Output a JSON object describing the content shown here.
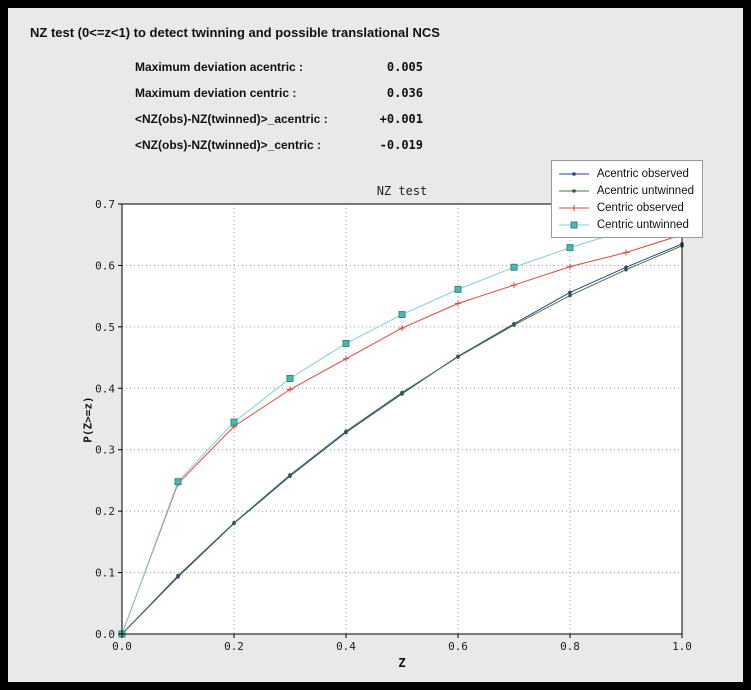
{
  "window": {
    "title": "NZ test (0<=z<1) to detect twinning and possible translational NCS"
  },
  "stats": {
    "rows": [
      {
        "label": "Maximum deviation acentric :",
        "value": "0.005"
      },
      {
        "label": "Maximum deviation centric :",
        "value": "0.036"
      },
      {
        "label": "<NZ(obs)-NZ(twinned)>_acentric :",
        "value": "+0.001"
      },
      {
        "label": "<NZ(obs)-NZ(twinned)>_centric :",
        "value": "-0.019"
      }
    ]
  },
  "chart_data": {
    "type": "line",
    "title": "NZ test",
    "xlabel": "Z",
    "ylabel": "P(Z>=z)",
    "xlim": [
      0.0,
      1.0
    ],
    "ylim": [
      0.0,
      0.7
    ],
    "x_ticks": [
      0.0,
      0.2,
      0.4,
      0.6,
      0.8,
      1.0
    ],
    "y_ticks": [
      0.0,
      0.1,
      0.2,
      0.3,
      0.4,
      0.5,
      0.6,
      0.7
    ],
    "grid": "dotted",
    "legend_position": "top-right",
    "x": [
      0.0,
      0.1,
      0.2,
      0.3,
      0.4,
      0.5,
      0.6,
      0.7,
      0.8,
      0.9,
      1.0
    ],
    "series": [
      {
        "name": "Acentric observed",
        "color": "#2e3d96",
        "marker": "dot",
        "marker_color": "#2e3d96",
        "values": [
          0.0,
          0.093,
          0.18,
          0.257,
          0.328,
          0.391,
          0.452,
          0.505,
          0.556,
          0.597,
          0.635
        ]
      },
      {
        "name": "Acentric untwinned",
        "color": "#3e7d3e",
        "marker": "dot",
        "marker_color": "#355b35",
        "values": [
          0.0,
          0.095,
          0.181,
          0.259,
          0.33,
          0.393,
          0.451,
          0.503,
          0.551,
          0.593,
          0.632
        ]
      },
      {
        "name": "Centric observed",
        "color": "#e2473d",
        "marker": "plus",
        "marker_color": "#e2473d",
        "values": [
          0.0,
          0.245,
          0.338,
          0.398,
          0.448,
          0.498,
          0.538,
          0.568,
          0.598,
          0.621,
          0.65
        ]
      },
      {
        "name": "Centric untwinned",
        "color": "#7ed0da",
        "marker": "square",
        "marker_color": "#53b6ad",
        "marker_stroke": "#2f8a80",
        "values": [
          0.0,
          0.248,
          0.345,
          0.416,
          0.473,
          0.52,
          0.561,
          0.597,
          0.629,
          0.657,
          0.683
        ]
      }
    ]
  }
}
